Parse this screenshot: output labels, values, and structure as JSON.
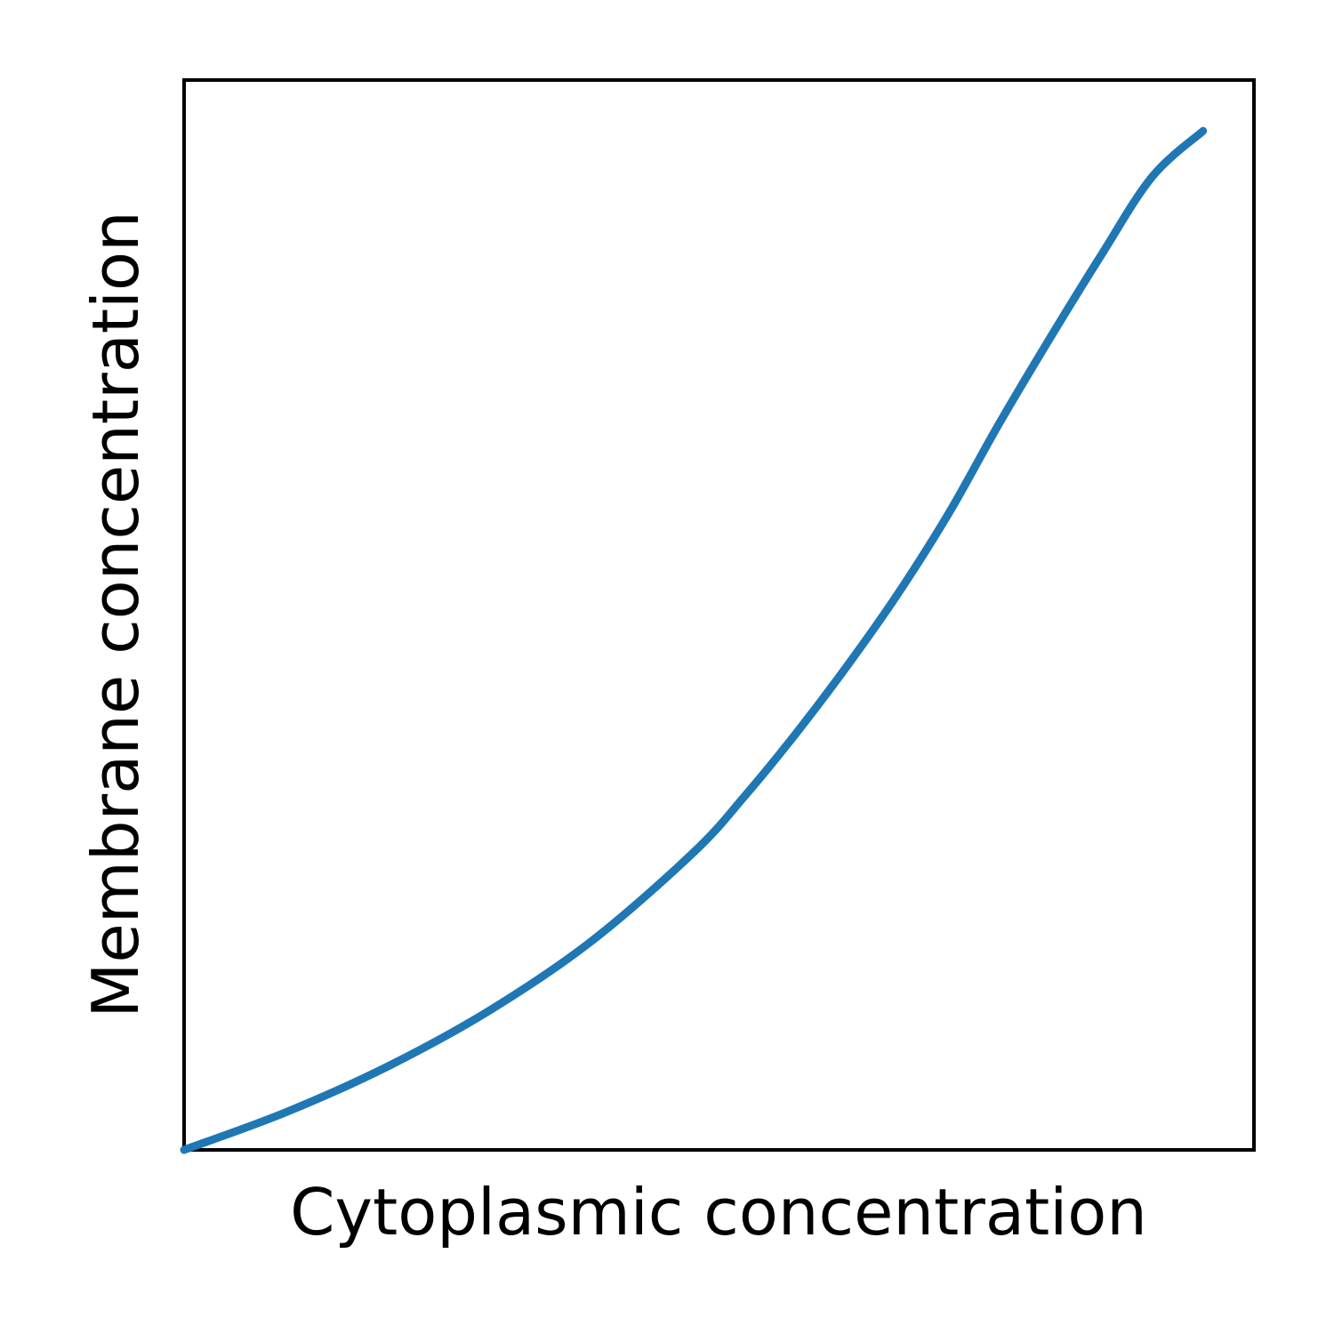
{
  "chart_data": {
    "type": "line",
    "title": "",
    "xlabel": "Cytoplasmic concentration",
    "ylabel": "Membrane concentration",
    "xlim": [
      0,
      1.05
    ],
    "ylim": [
      0,
      1.05
    ],
    "x_ticks_shown": false,
    "y_ticks_shown": false,
    "grid": false,
    "legend": "none",
    "series": [
      {
        "color": "#1f77b4",
        "x": [
          0.0,
          0.1,
          0.2,
          0.3,
          0.4,
          0.5,
          0.55,
          0.6,
          0.65,
          0.7,
          0.75,
          0.8,
          0.85,
          0.9,
          0.95,
          1.0
        ],
        "y": [
          0.0,
          0.037,
          0.082,
          0.137,
          0.205,
          0.292,
          0.347,
          0.408,
          0.474,
          0.545,
          0.624,
          0.713,
          0.797,
          0.878,
          0.955,
          1.0
        ]
      }
    ]
  }
}
